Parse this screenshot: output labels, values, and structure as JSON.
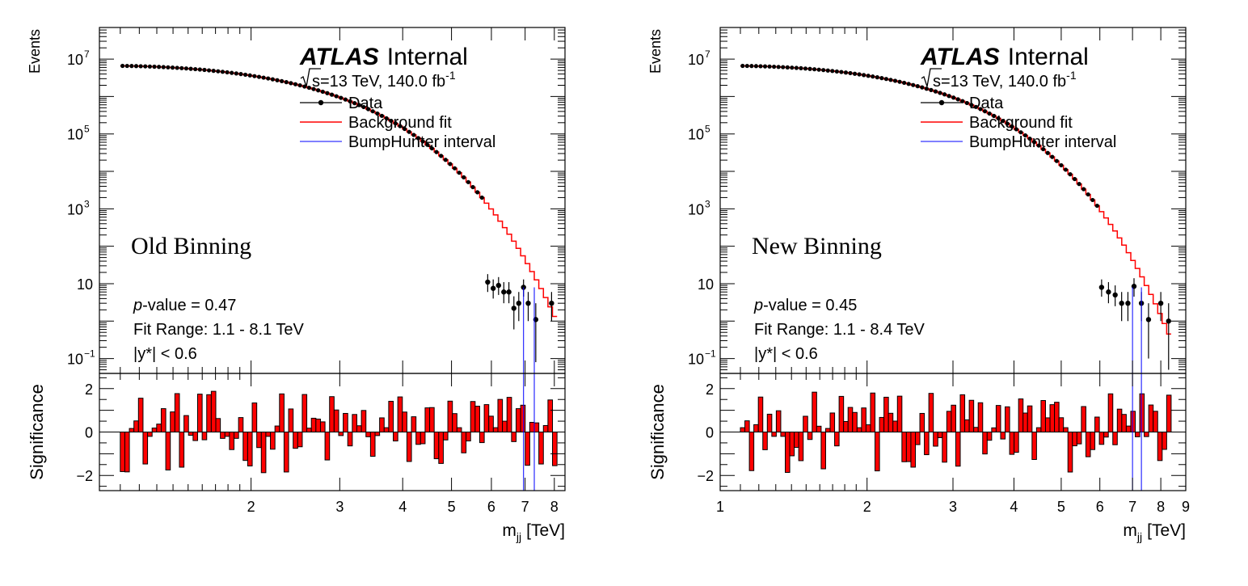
{
  "chart_data": [
    {
      "type": "line",
      "panel_label": "Old Binning",
      "experiment": "ATLAS",
      "status": "Internal",
      "energy_prefix": "s=13 TeV, 140.0 fb",
      "energy_exp": "-1",
      "legend": {
        "data": "Data",
        "fit": "Background fit",
        "bump": "BumpHunter interval"
      },
      "pvalue_prefix": "p",
      "pvalue_text": "-value = 0.47",
      "fit_range": "Fit Range: 1.1 - 8.1 TeV",
      "cut": "|y*| < 0.6",
      "ylabel_top": "Events",
      "ylabel_bottom": "Significance",
      "xlabel_main": "m",
      "xlabel_sub": "jj",
      "xlabel_unit": "[TeV]",
      "xlog": true,
      "ylog": true,
      "xlim": [
        1.0,
        8.4
      ],
      "ylim_top": [
        0.04,
        70000000
      ],
      "ylim_bottom": [
        -2.7,
        2.7
      ],
      "xticks_labeled": [
        2,
        3,
        4,
        5,
        6,
        7,
        8
      ],
      "ytick_labels": [
        {
          "value": 10000000,
          "base": "10",
          "exp": "7"
        },
        {
          "value": 100000,
          "base": "10",
          "exp": "5"
        },
        {
          "value": 1000,
          "base": "10",
          "exp": "3"
        },
        {
          "value": 10,
          "base": "10",
          "exp": ""
        },
        {
          "value": 0.1,
          "base": "10",
          "exp": "−1"
        }
      ],
      "sig_ticks": [
        {
          "value": 2,
          "label": "2"
        },
        {
          "value": 0,
          "label": "0"
        },
        {
          "value": -2,
          "label": "−2"
        }
      ],
      "data_range": [
        1.1,
        8.1
      ],
      "points": [
        {
          "x": 5.9,
          "y": 11,
          "err": [
            6,
            18
          ]
        },
        {
          "x": 6.05,
          "y": 7.5,
          "err": [
            4,
            13
          ]
        },
        {
          "x": 6.2,
          "y": 9,
          "err": [
            5,
            15
          ]
        },
        {
          "x": 6.35,
          "y": 6,
          "err": [
            3,
            11
          ]
        },
        {
          "x": 6.5,
          "y": 6,
          "err": [
            3,
            11
          ]
        },
        {
          "x": 6.65,
          "y": 2.2,
          "err": [
            0.6,
            4.6
          ]
        },
        {
          "x": 6.8,
          "y": 3,
          "err": [
            1,
            6
          ]
        },
        {
          "x": 6.95,
          "y": 8,
          "err": [
            4.5,
            13
          ]
        },
        {
          "x": 7.1,
          "y": 3,
          "err": [
            1,
            6
          ]
        },
        {
          "x": 7.35,
          "y": 1.1,
          "err": [
            0.08,
            3
          ]
        },
        {
          "x": 7.9,
          "y": 3,
          "err": [
            1,
            6
          ]
        }
      ],
      "bump_interval": [
        6.95,
        7.3
      ],
      "bump_extent": [
        0.06,
        8
      ]
    },
    {
      "type": "line",
      "panel_label": "New Binning",
      "experiment": "ATLAS",
      "status": "Internal",
      "energy_prefix": "s=13 TeV, 140.0 fb",
      "energy_exp": "-1",
      "legend": {
        "data": "Data",
        "fit": "Background fit",
        "bump": "BumpHunter interval"
      },
      "pvalue_prefix": "p",
      "pvalue_text": "-value = 0.45",
      "fit_range": "Fit Range: 1.1 - 8.4 TeV",
      "cut": "|y*| < 0.6",
      "ylabel_top": "Events",
      "ylabel_bottom": "Significance",
      "xlabel_main": "m",
      "xlabel_sub": "jj",
      "xlabel_unit": "[TeV]",
      "xlog": true,
      "ylog": true,
      "xlim": [
        1.0,
        9.0
      ],
      "ylim_top": [
        0.04,
        70000000
      ],
      "ylim_bottom": [
        -2.7,
        2.7
      ],
      "xticks_labeled": [
        1,
        2,
        3,
        4,
        5,
        6,
        7,
        8,
        9
      ],
      "ytick_labels": [
        {
          "value": 10000000,
          "base": "10",
          "exp": "7"
        },
        {
          "value": 100000,
          "base": "10",
          "exp": "5"
        },
        {
          "value": 1000,
          "base": "10",
          "exp": "3"
        },
        {
          "value": 10,
          "base": "10",
          "exp": ""
        },
        {
          "value": 0.1,
          "base": "10",
          "exp": "−1"
        }
      ],
      "sig_ticks": [
        {
          "value": 2,
          "label": "2"
        },
        {
          "value": 0,
          "label": "0"
        },
        {
          "value": -2,
          "label": "−2"
        }
      ],
      "data_range": [
        1.1,
        8.4
      ],
      "points": [
        {
          "x": 6.05,
          "y": 8,
          "err": [
            4.5,
            13
          ]
        },
        {
          "x": 6.25,
          "y": 6,
          "err": [
            3,
            11
          ]
        },
        {
          "x": 6.45,
          "y": 5,
          "err": [
            2.5,
            9
          ]
        },
        {
          "x": 6.65,
          "y": 3,
          "err": [
            1,
            6
          ]
        },
        {
          "x": 6.85,
          "y": 3,
          "err": [
            1,
            6
          ]
        },
        {
          "x": 7.05,
          "y": 8.5,
          "err": [
            4.5,
            14
          ]
        },
        {
          "x": 7.3,
          "y": 3,
          "err": [
            1,
            6
          ]
        },
        {
          "x": 7.55,
          "y": 1.1,
          "err": [
            0.1,
            3
          ]
        },
        {
          "x": 8.0,
          "y": 3,
          "err": [
            1,
            6
          ]
        },
        {
          "x": 8.3,
          "y": 1.0,
          "err": [
            0.05,
            3
          ]
        }
      ],
      "bump_interval": [
        7.0,
        7.3
      ],
      "bump_extent": [
        0.06,
        8
      ]
    }
  ]
}
